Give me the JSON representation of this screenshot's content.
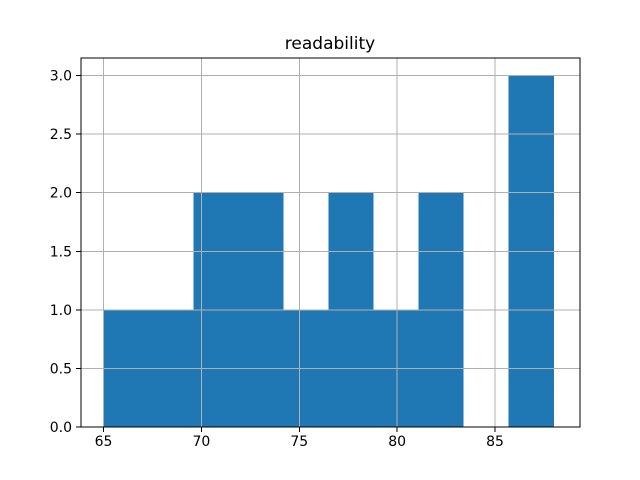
{
  "chart_data": {
    "type": "bar",
    "subtype": "histogram",
    "title": "readability",
    "xlabel": "",
    "ylabel": "",
    "bin_edges": [
      65.0,
      67.3,
      69.6,
      71.9,
      74.2,
      76.5,
      78.8,
      81.1,
      83.4,
      85.7,
      88.0
    ],
    "counts": [
      1,
      1,
      2,
      2,
      1,
      2,
      1,
      2,
      0,
      3
    ],
    "xlim": [
      63.85,
      89.34
    ],
    "ylim": [
      0,
      3.15
    ],
    "x_ticks": [
      65,
      70,
      75,
      80,
      85
    ],
    "x_tick_labels": [
      "65",
      "70",
      "75",
      "80",
      "85"
    ],
    "y_ticks": [
      0,
      0.5,
      1,
      1.5,
      2,
      2.5,
      3
    ],
    "y_tick_labels": [
      "0.0",
      "0.5",
      "1.0",
      "1.5",
      "2.0",
      "2.5",
      "3.0"
    ],
    "grid": true,
    "grid_over_bars": true,
    "legend": "none",
    "colors": {
      "bar": "#1f77b4",
      "grid": "#b0b0b0",
      "spine": "#000000",
      "text": "#000000",
      "background": "#ffffff"
    }
  }
}
